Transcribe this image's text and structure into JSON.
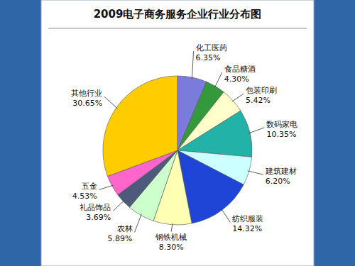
{
  "chart_data": {
    "type": "pie",
    "title": "2009电子商务服务企业行业分布图",
    "categories": [
      "化工医药",
      "食品糖酒",
      "包装印刷",
      "数码家电",
      "建筑建材",
      "纺织服装",
      "钢铁机械",
      "农林",
      "礼品饰品",
      "五金",
      "其他行业"
    ],
    "values": [
      6.35,
      4.3,
      5.42,
      10.35,
      6.2,
      14.32,
      8.3,
      5.89,
      3.69,
      4.53,
      30.65
    ],
    "value_labels": [
      "6.35%",
      "4.30%",
      "5.42%",
      "10.35%",
      "6.20%",
      "14.32%",
      "8.30%",
      "5.89%",
      "3.69%",
      "4.53%",
      "30.65%"
    ],
    "colors": [
      "#7b7bdb",
      "#33993a",
      "#ffffcc",
      "#22b2a8",
      "#ccffff",
      "#1f45d6",
      "#ffffb3",
      "#ccffcc",
      "#4d5a7c",
      "#ff66cc",
      "#ffcc00"
    ],
    "data_labels": true
  }
}
